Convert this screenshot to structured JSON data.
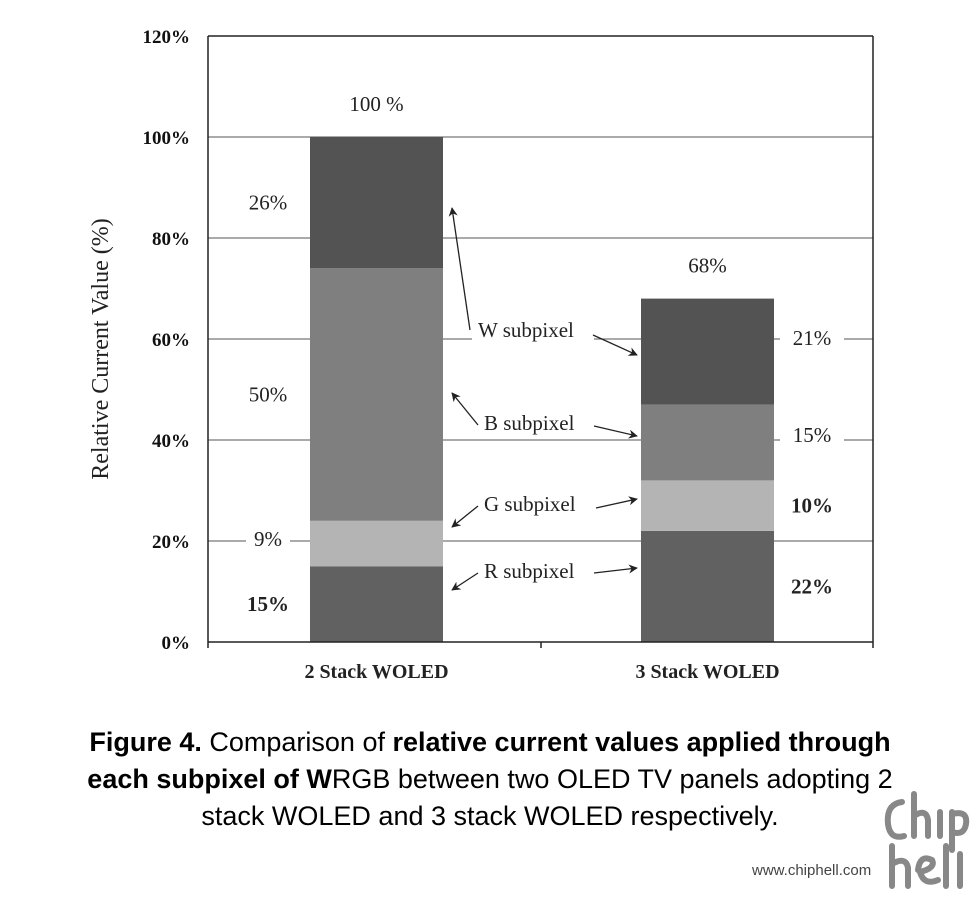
{
  "chart_data": {
    "type": "bar",
    "stacked": true,
    "categories": [
      "2 Stack WOLED",
      "3 Stack WOLED"
    ],
    "series": [
      {
        "name": "R subpixel",
        "values": [
          15,
          22
        ],
        "labels": [
          "15%",
          "22%"
        ],
        "color": "#616161"
      },
      {
        "name": "G subpixel",
        "values": [
          9,
          10
        ],
        "labels": [
          "9%",
          "10%"
        ],
        "color": "#b4b4b4"
      },
      {
        "name": "B subpixel",
        "values": [
          50,
          15
        ],
        "labels": [
          "50%",
          "15%"
        ],
        "color": "#7f7f7f"
      },
      {
        "name": "W subpixel",
        "values": [
          26,
          21
        ],
        "labels": [
          "26%",
          "21%"
        ],
        "color": "#535353"
      }
    ],
    "totals": [
      100,
      68
    ],
    "total_labels": [
      "100 %",
      "68%"
    ],
    "ylabel": "Relative Current Value (%)",
    "xlabel": "",
    "ylim": [
      0,
      120
    ],
    "yticks": [
      0,
      20,
      40,
      60,
      80,
      100,
      120
    ],
    "ytick_labels": [
      "0%",
      "20%",
      "40%",
      "60%",
      "80%",
      "100%",
      "120%"
    ],
    "grid": true
  },
  "caption": {
    "part1_bold": "Figure 4.",
    "part2": " Comparison of ",
    "part3_bold": "relative current values applied through each subpixel of W",
    "part4": "RGB between two OLED TV panels adopting 2 stack WOLED and 3 stack WOLED respectively."
  },
  "watermark": {
    "url": "www.chiphell.com",
    "logo": "chip hell"
  }
}
